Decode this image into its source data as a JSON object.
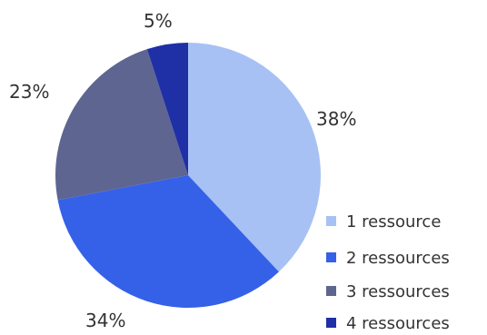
{
  "chart_data": {
    "type": "pie",
    "title": "",
    "legend_position": "bottom-right",
    "slices": [
      {
        "label": "1 ressource",
        "value": 38,
        "color": "#a7c1f4"
      },
      {
        "label": "2 ressources",
        "value": 34,
        "color": "#3561e8"
      },
      {
        "label": "3 ressources",
        "value": 23,
        "color": "#5e6591"
      },
      {
        "label": "4 ressources",
        "value": 5,
        "color": "#1f2fa6"
      }
    ],
    "data_labels": [
      "38%",
      "34%",
      "23%",
      "5%"
    ]
  }
}
